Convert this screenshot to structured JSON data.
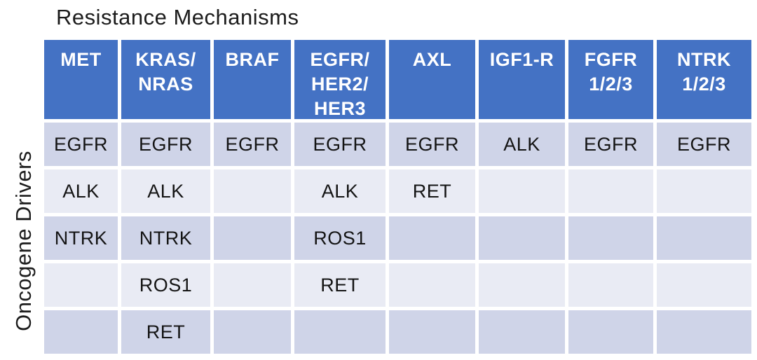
{
  "title": "Resistance Mechanisms",
  "y_axis_label": "Oncogene Drivers",
  "colors": {
    "header_bg": "#4472c4",
    "header_text": "#ffffff",
    "row_dark_bg": "#cfd4e8",
    "row_light_bg": "#e9ebf4",
    "body_text": "#141414",
    "page_bg": "#ffffff"
  },
  "display": {
    "column_headers": [
      "MET",
      "KRAS/\nNRAS",
      "BRAF",
      "EGFR/\nHER2/\nHER3",
      "AXL",
      "IGF1-R",
      "FGFR\n1/2/3",
      "NTRK\n1/2/3"
    ],
    "rows": [
      [
        "EGFR",
        "EGFR",
        "EGFR",
        "EGFR",
        "EGFR",
        "ALK",
        "EGFR",
        "EGFR"
      ],
      [
        "ALK",
        "ALK",
        "",
        "ALK",
        "RET",
        "",
        "",
        ""
      ],
      [
        "NTRK",
        "NTRK",
        "",
        "ROS1",
        "",
        "",
        "",
        ""
      ],
      [
        "",
        "ROS1",
        "",
        "RET",
        "",
        "",
        "",
        ""
      ],
      [
        "",
        "RET",
        "",
        "",
        "",
        "",
        "",
        ""
      ]
    ]
  },
  "chart_data": {
    "type": "table",
    "title": "Resistance Mechanisms",
    "xlabel": "Resistance Mechanisms",
    "ylabel": "Oncogene Drivers",
    "columns": [
      "MET",
      "KRAS/NRAS",
      "BRAF",
      "EGFR/HER2/HER3",
      "AXL",
      "IGF1-R",
      "FGFR 1/2/3",
      "NTRK 1/2/3"
    ],
    "rows": [
      [
        "EGFR",
        "EGFR",
        "EGFR",
        "EGFR",
        "EGFR",
        "ALK",
        "EGFR",
        "EGFR"
      ],
      [
        "ALK",
        "ALK",
        "",
        "ALK",
        "RET",
        "",
        "",
        ""
      ],
      [
        "NTRK",
        "NTRK",
        "",
        "ROS1",
        "",
        "",
        "",
        ""
      ],
      [
        "",
        "ROS1",
        "",
        "RET",
        "",
        "",
        "",
        ""
      ],
      [
        "",
        "RET",
        "",
        "",
        "",
        "",
        "",
        ""
      ]
    ],
    "layout_hints": {
      "header_fill": "#4472c4",
      "alternating_row_fills": [
        "#cfd4e8",
        "#e9ebf4"
      ],
      "grid": "white gaps between cells",
      "row_label_orientation": "vertical, rotated 90° counterclockwise"
    }
  }
}
